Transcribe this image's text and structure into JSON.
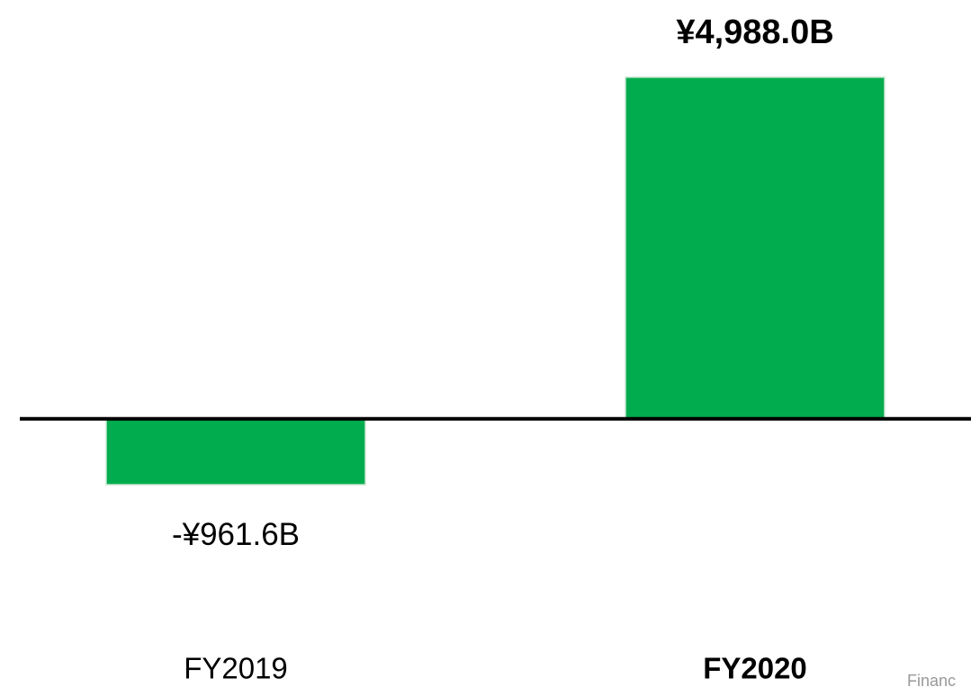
{
  "chart_data": {
    "type": "bar",
    "categories": [
      "FY2019",
      "FY2020"
    ],
    "values": [
      -961.6,
      4988.0
    ],
    "value_labels": [
      "-¥961.6B",
      "¥4,988.0B"
    ],
    "color": "#00ac4e",
    "ylim": [
      -1500,
      5000
    ],
    "source": "Financ"
  }
}
